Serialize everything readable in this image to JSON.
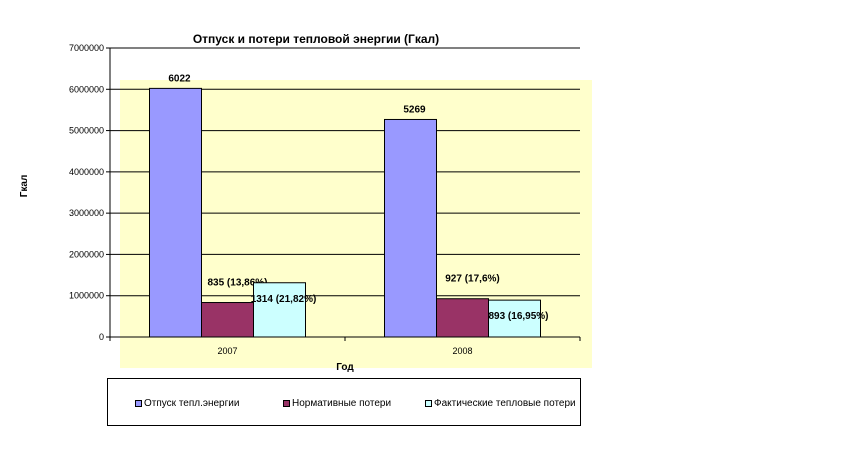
{
  "chart_data": {
    "type": "bar",
    "title": "Отпуск и потери тепловой энергии  (Гкал)",
    "xlabel": "Год",
    "ylabel": "Гкал",
    "categories": [
      "2007",
      "2008"
    ],
    "ylim": [
      0,
      7000000
    ],
    "yticks": [
      "0",
      "1000000",
      "2000000",
      "3000000",
      "4000000",
      "5000000",
      "6000000",
      "7000000"
    ],
    "grid": true,
    "legend_position": "bottom",
    "series": [
      {
        "name": "Отпуск тепл.энергии",
        "color": "#9999ff",
        "values": [
          6022000,
          5269000
        ],
        "labels": [
          "6022",
          "5269"
        ]
      },
      {
        "name": "Нормативные потери",
        "color": "#993366",
        "values": [
          835000,
          927000
        ],
        "labels": [
          "835 (13,86%)",
          "927 (17,6%)"
        ]
      },
      {
        "name": "Фактические тепловые потери",
        "color": "#ccffff",
        "values": [
          1314000,
          893000
        ],
        "labels": [
          "1314 (21,82%)",
          "893 (16,95%)"
        ]
      }
    ],
    "plot_area_color": "#ffffcc"
  }
}
